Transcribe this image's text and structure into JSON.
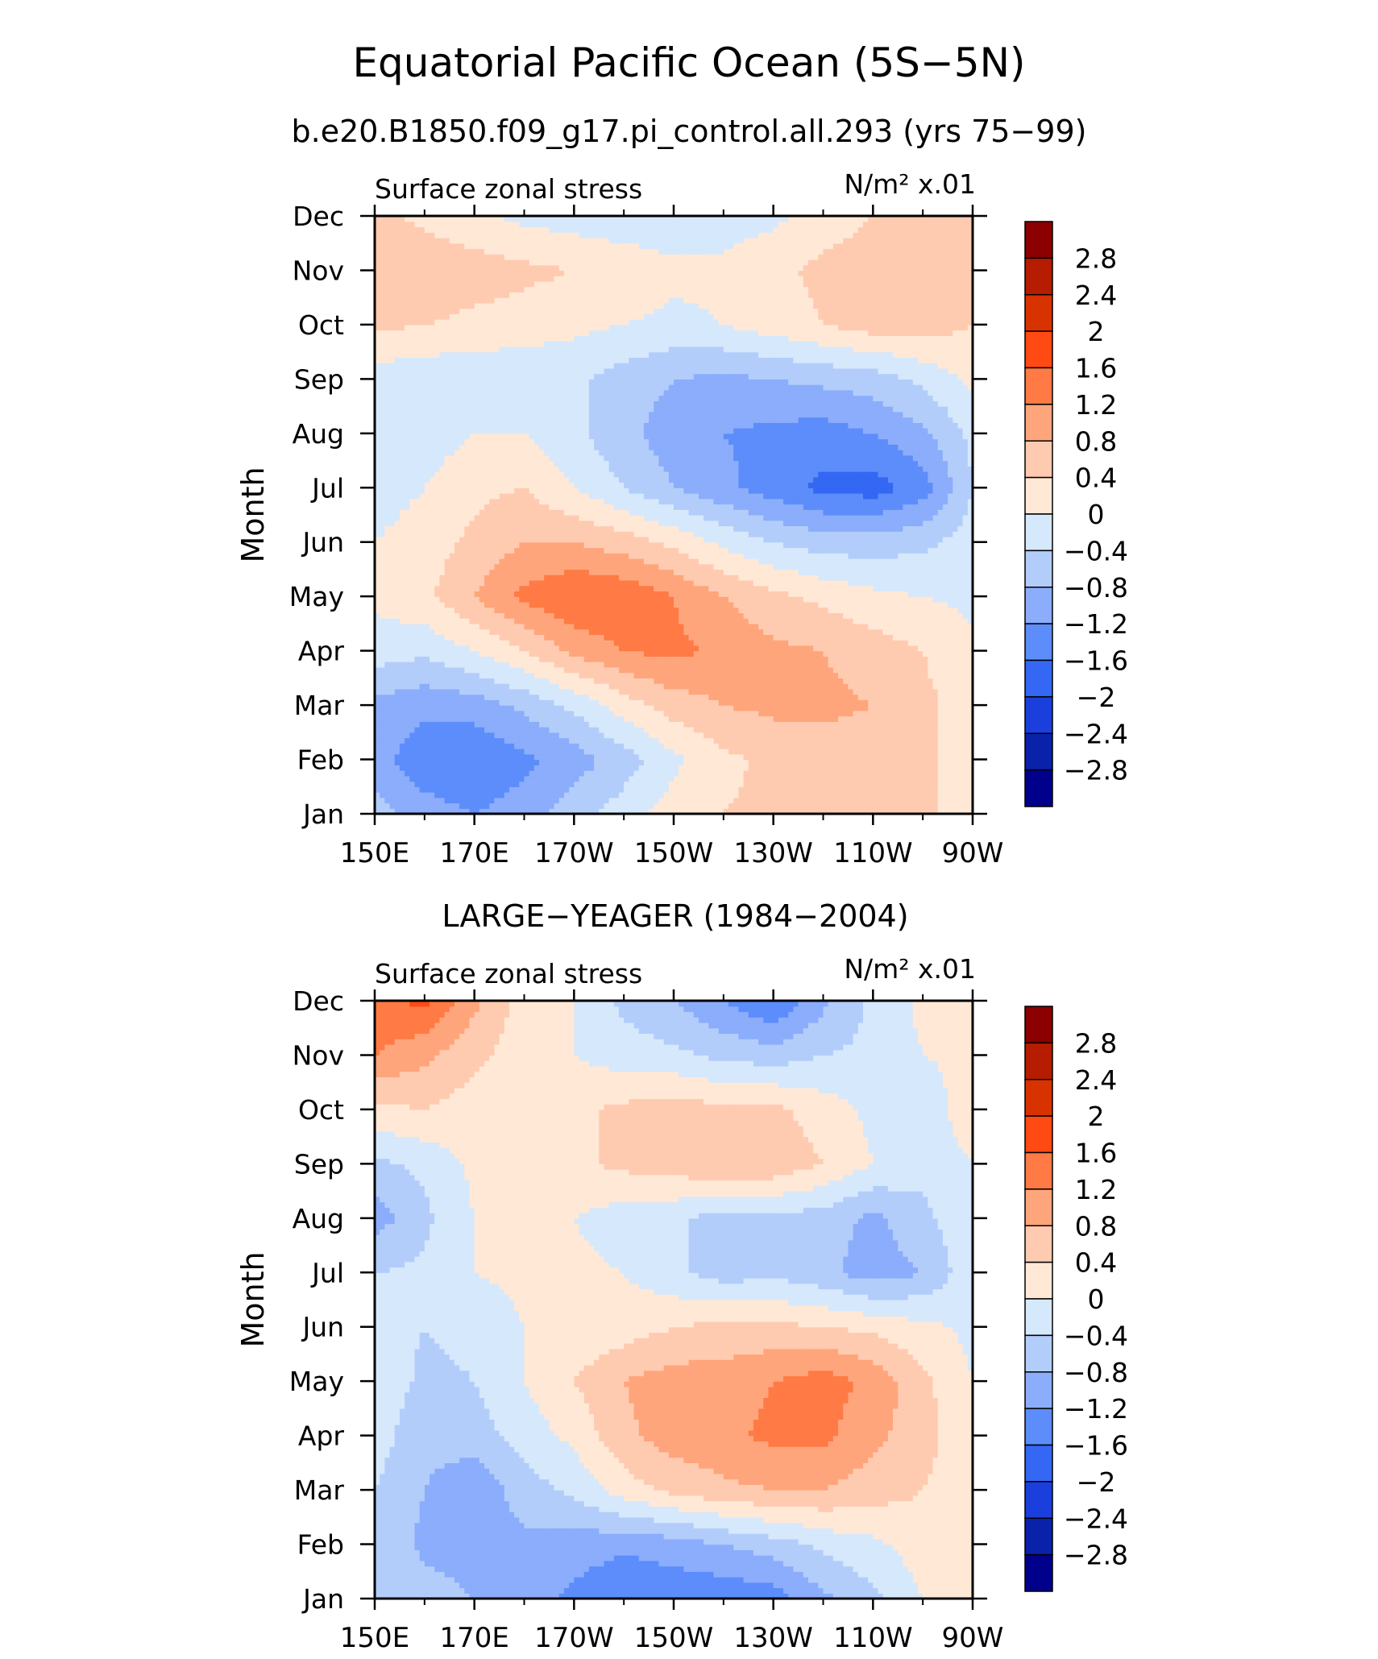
{
  "figure": {
    "title": "Equatorial Pacific Ocean (5S−5N)",
    "subtitle": "b.e20.B1850.f09_g17.pi_control.all.293 (yrs 75−99)"
  },
  "colorbar": {
    "levels": [
      "2.8",
      "2.4",
      "2",
      "1.6",
      "1.2",
      "0.8",
      "0.4",
      "0",
      "−0.4",
      "−0.8",
      "−1.2",
      "−1.6",
      "−2",
      "−2.4",
      "−2.8"
    ],
    "colors": [
      "#8b0000",
      "#b51c00",
      "#d83200",
      "#ff4a14",
      "#ff7a45",
      "#ffa57c",
      "#ffcbb0",
      "#ffe8d6",
      "#d6e8fb",
      "#b3cdfb",
      "#8badfb",
      "#5c8dfb",
      "#3467f4",
      "#1b3fdc",
      "#0a22aa",
      "#00008b"
    ]
  },
  "chart_data": [
    {
      "type": "heatmap",
      "title": "",
      "panel_label": "",
      "variable": "Surface zonal stress",
      "units_label": "N/m² x.01",
      "xlabel": "",
      "ylabel": "Month",
      "x_ticks": [
        "150E",
        "170E",
        "170W",
        "150W",
        "130W",
        "110W",
        "90W"
      ],
      "y_ticks": [
        "Jan",
        "Feb",
        "Mar",
        "Apr",
        "May",
        "Jun",
        "Jul",
        "Aug",
        "Sep",
        "Oct",
        "Nov",
        "Dec"
      ],
      "x": [
        150,
        160,
        170,
        180,
        190,
        200,
        210,
        220,
        230,
        240,
        250,
        260,
        270
      ],
      "rows": [
        {
          "month": "Jan",
          "values": [
            -0.6,
            -1.0,
            -1.2,
            -1.0,
            -0.6,
            -0.2,
            0.2,
            0.4,
            0.5,
            0.5,
            0.6,
            0.5,
            0.2
          ]
        },
        {
          "month": "Feb",
          "values": [
            -1.0,
            -1.5,
            -1.6,
            -1.3,
            -1.0,
            -0.6,
            -0.1,
            0.3,
            0.5,
            0.6,
            0.6,
            0.5,
            0.2
          ]
        },
        {
          "month": "Mar",
          "values": [
            -0.9,
            -1.1,
            -1.0,
            -0.7,
            -0.3,
            0.2,
            0.6,
            0.8,
            0.9,
            0.9,
            0.8,
            0.5,
            0.2
          ]
        },
        {
          "month": "Apr",
          "values": [
            -0.2,
            -0.3,
            0.0,
            0.4,
            0.9,
            1.2,
            1.3,
            1.1,
            0.9,
            0.8,
            0.6,
            0.4,
            0.1
          ]
        },
        {
          "month": "May",
          "values": [
            0.1,
            0.3,
            0.8,
            1.3,
            1.6,
            1.5,
            1.2,
            0.8,
            0.5,
            0.3,
            0.1,
            0.0,
            -0.1
          ]
        },
        {
          "month": "Jun",
          "values": [
            0.0,
            0.2,
            0.5,
            0.8,
            0.8,
            0.6,
            0.3,
            -0.1,
            -0.4,
            -0.6,
            -0.6,
            -0.5,
            -0.2
          ]
        },
        {
          "month": "Jul",
          "values": [
            -0.2,
            0.0,
            0.3,
            0.4,
            0.0,
            -0.4,
            -0.8,
            -1.1,
            -1.4,
            -1.7,
            -1.8,
            -1.4,
            -0.4
          ]
        },
        {
          "month": "Aug",
          "values": [
            -0.3,
            -0.2,
            0.0,
            0.0,
            -0.3,
            -0.7,
            -1.0,
            -1.2,
            -1.3,
            -1.4,
            -1.2,
            -0.9,
            -0.3
          ]
        },
        {
          "month": "Sep",
          "values": [
            -0.2,
            -0.3,
            -0.3,
            -0.3,
            -0.3,
            -0.6,
            -0.8,
            -0.9,
            -0.8,
            -0.7,
            -0.6,
            -0.3,
            0.1
          ]
        },
        {
          "month": "Oct",
          "values": [
            0.5,
            0.4,
            0.3,
            0.2,
            0.1,
            0.0,
            -0.1,
            0.0,
            0.2,
            0.4,
            0.6,
            0.6,
            0.4
          ]
        },
        {
          "month": "Nov",
          "values": [
            0.7,
            0.7,
            0.6,
            0.5,
            0.4,
            0.3,
            0.1,
            0.1,
            0.3,
            0.5,
            0.6,
            0.6,
            0.4
          ]
        },
        {
          "month": "Dec",
          "values": [
            0.5,
            0.3,
            0.1,
            -0.1,
            -0.2,
            -0.3,
            -0.3,
            -0.2,
            -0.1,
            0.2,
            0.4,
            0.5,
            0.4
          ]
        }
      ]
    },
    {
      "type": "heatmap",
      "title": "LARGE−YEAGER (1984−2004)",
      "panel_label": "LARGE−YEAGER (1984−2004)",
      "variable": "Surface zonal stress",
      "units_label": "N/m² x.01",
      "xlabel": "",
      "ylabel": "Month",
      "x_ticks": [
        "150E",
        "170E",
        "170W",
        "150W",
        "130W",
        "110W",
        "90W"
      ],
      "y_ticks": [
        "Jan",
        "Feb",
        "Mar",
        "Apr",
        "May",
        "Jun",
        "Jul",
        "Aug",
        "Sep",
        "Oct",
        "Nov",
        "Dec"
      ],
      "x": [
        150,
        160,
        170,
        180,
        190,
        200,
        210,
        220,
        230,
        240,
        250,
        260,
        270
      ],
      "rows": [
        {
          "month": "Jan",
          "values": [
            -0.4,
            -0.6,
            -0.8,
            -1.0,
            -1.3,
            -1.6,
            -1.5,
            -1.5,
            -1.4,
            -0.9,
            -0.5,
            0.0,
            0.1
          ]
        },
        {
          "month": "Feb",
          "values": [
            -0.5,
            -0.9,
            -1.0,
            -0.9,
            -1.0,
            -1.1,
            -1.0,
            -0.8,
            -0.6,
            -0.3,
            -0.1,
            0.2,
            0.1
          ]
        },
        {
          "month": "Mar",
          "values": [
            -0.4,
            -0.8,
            -1.1,
            -0.6,
            -0.3,
            0.2,
            0.5,
            0.7,
            0.8,
            0.8,
            0.6,
            0.4,
            0.1
          ]
        },
        {
          "month": "Apr",
          "values": [
            -0.2,
            -0.7,
            -0.6,
            -0.2,
            0.1,
            0.7,
            1.0,
            1.1,
            1.3,
            1.3,
            0.9,
            0.6,
            0.0
          ]
        },
        {
          "month": "May",
          "values": [
            -0.1,
            -0.5,
            -0.4,
            0.0,
            0.4,
            0.8,
            1.0,
            1.0,
            1.2,
            1.4,
            1.1,
            0.5,
            0.0
          ]
        },
        {
          "month": "Jun",
          "values": [
            -0.2,
            -0.4,
            -0.3,
            0.0,
            0.1,
            0.2,
            0.4,
            0.5,
            0.5,
            0.4,
            0.3,
            0.1,
            -0.1
          ]
        },
        {
          "month": "Jul",
          "values": [
            -0.4,
            -0.3,
            0.0,
            0.1,
            0.1,
            0.0,
            -0.3,
            -0.6,
            -0.5,
            -0.7,
            -1.0,
            -0.8,
            -0.1
          ]
        },
        {
          "month": "Aug",
          "values": [
            -1.0,
            -0.5,
            0.0,
            0.1,
            0.0,
            -0.2,
            -0.3,
            -0.6,
            -0.5,
            -0.6,
            -0.9,
            -0.5,
            -0.1
          ]
        },
        {
          "month": "Sep",
          "values": [
            -0.5,
            -0.3,
            0.1,
            0.2,
            0.3,
            0.5,
            0.6,
            0.8,
            0.7,
            0.4,
            0.0,
            -0.3,
            0.0
          ]
        },
        {
          "month": "Oct",
          "values": [
            0.3,
            0.4,
            0.2,
            0.2,
            0.3,
            0.5,
            0.6,
            0.5,
            0.5,
            0.2,
            -0.1,
            -0.3,
            0.3
          ]
        },
        {
          "month": "Nov",
          "values": [
            1.2,
            0.9,
            0.5,
            0.2,
            0.0,
            -0.2,
            -0.3,
            -0.5,
            -0.6,
            -0.4,
            -0.3,
            0.0,
            0.1
          ]
        },
        {
          "month": "Dec",
          "values": [
            1.5,
            1.7,
            0.9,
            0.2,
            0.0,
            -0.5,
            -0.8,
            -1.2,
            -1.6,
            -0.9,
            -0.3,
            0.1,
            0.2
          ]
        }
      ]
    }
  ]
}
